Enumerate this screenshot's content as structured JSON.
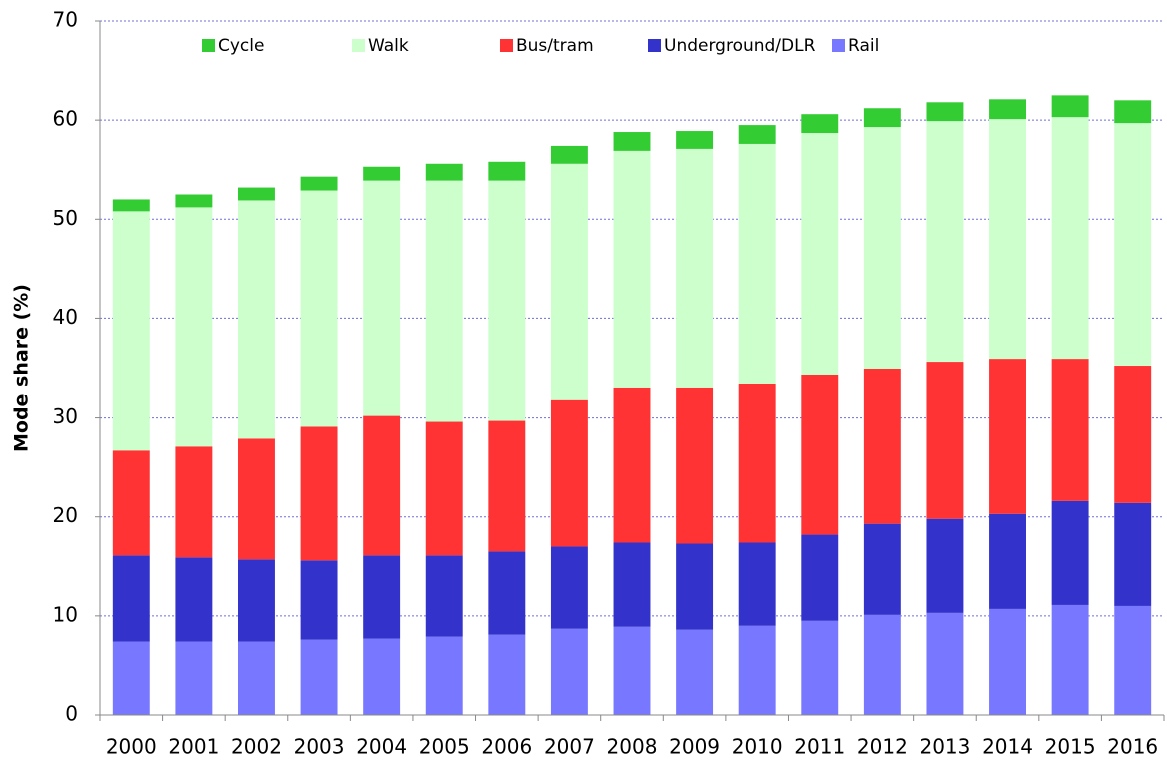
{
  "chart_data": {
    "type": "stacked_bar",
    "y_label": "Mode share (%)",
    "categories": [
      "2000",
      "2001",
      "2002",
      "2003",
      "2004",
      "2005",
      "2006",
      "2007",
      "2008",
      "2009",
      "2010",
      "2011",
      "2012",
      "2013",
      "2014",
      "2015",
      "2016"
    ],
    "series": [
      {
        "name": "Cycle",
        "color": "#33cc33",
        "values": [
          1.2,
          1.3,
          1.3,
          1.4,
          1.4,
          1.7,
          1.9,
          1.8,
          1.9,
          1.8,
          1.9,
          1.9,
          1.9,
          1.9,
          2.0,
          2.2,
          2.3
        ]
      },
      {
        "name": "Walk",
        "color": "#ccffcc",
        "values": [
          24.1,
          24.1,
          24.0,
          23.8,
          23.7,
          24.3,
          24.2,
          23.8,
          23.9,
          24.1,
          24.2,
          24.4,
          24.4,
          24.3,
          24.2,
          24.4,
          24.5
        ]
      },
      {
        "name": "Bus/tram",
        "color": "#ff3333",
        "values": [
          10.6,
          11.2,
          12.2,
          13.5,
          14.1,
          13.5,
          13.2,
          14.8,
          15.6,
          15.7,
          16.0,
          16.1,
          15.6,
          15.8,
          15.6,
          14.3,
          13.8
        ]
      },
      {
        "name": "Underground/DLR",
        "color": "#3333cc",
        "values": [
          8.7,
          8.5,
          8.3,
          8.0,
          8.4,
          8.2,
          8.4,
          8.3,
          8.5,
          8.7,
          8.4,
          8.7,
          9.2,
          9.5,
          9.6,
          10.5,
          10.4
        ]
      },
      {
        "name": "Rail",
        "color": "#7777ff",
        "values": [
          7.4,
          7.4,
          7.4,
          7.6,
          7.7,
          7.9,
          8.1,
          8.7,
          8.9,
          8.6,
          9.0,
          9.5,
          10.1,
          10.3,
          10.7,
          11.1,
          11.0
        ]
      }
    ],
    "ylim": [
      0,
      70
    ],
    "yticks": [
      0,
      10,
      20,
      30,
      40,
      50,
      60,
      70
    ],
    "grid": true,
    "legend": "top"
  }
}
